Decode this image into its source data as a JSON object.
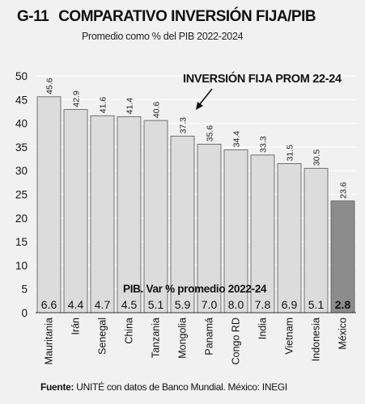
{
  "header": {
    "code": "G-11",
    "title": "COMPARATIVO INVERSIÓN FIJA/PIB",
    "subtitle": "Promedio como % del PIB 2022-2024"
  },
  "source": {
    "label": "Fuente:",
    "text": "UNITÉ con datos de Banco Mundial. México: INEGI"
  },
  "colors": {
    "bar": "#dcdcdc",
    "bar_highlight": "#8c8c8c",
    "grid": "#ffffff",
    "background": "#f1f1f1"
  },
  "chart_data": {
    "type": "bar",
    "title": "COMPARATIVO INVERSIÓN FIJA/PIB",
    "subtitle": "Promedio como % del PIB 2022-2024",
    "categories": [
      "Mauritania",
      "Irán",
      "Senegal",
      "China",
      "Tanzania",
      "Mongolia",
      "Panamá",
      "Congo RD",
      "India",
      "Vietnam",
      "Indonesia",
      "México"
    ],
    "series": [
      {
        "name": "INVERSIÓN FIJA PROM 22-24",
        "values": [
          45.6,
          42.9,
          41.6,
          41.4,
          40.6,
          37.3,
          35.6,
          34.4,
          33.3,
          31.5,
          30.5,
          23.6
        ],
        "labels": [
          "45.6",
          "42.9",
          "41.6",
          "41.4",
          "40.6",
          "37.3",
          "35.6",
          "34.4",
          "33.3",
          "31.5",
          "30.5",
          "23.6"
        ]
      },
      {
        "name": "PIB. Var % promedio 2022-24",
        "values": [
          6.6,
          4.4,
          4.7,
          4.5,
          5.1,
          5.9,
          7.0,
          8.0,
          7.8,
          6.9,
          5.1,
          2.8
        ],
        "labels": [
          "6.6",
          "4.4",
          "4.7",
          "4.5",
          "5.1",
          "5.9",
          "7.0",
          "8.0",
          "7.8",
          "6.9",
          "5.1",
          "2.8"
        ]
      }
    ],
    "highlight_category": "México",
    "annotation": "INVERSIÓN FIJA PROM 22-24",
    "yticks": [
      "0",
      "5",
      "10",
      "15",
      "20",
      "25",
      "30",
      "35",
      "40",
      "45",
      "50"
    ],
    "ylim": [
      0,
      50
    ],
    "grid": true
  }
}
